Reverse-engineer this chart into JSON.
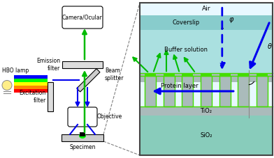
{
  "fig_width": 3.92,
  "fig_height": 2.27,
  "dpi": 100,
  "colors": {
    "blue": "#0000ee",
    "green": "#00bb00",
    "lime": "#44ee00",
    "gray": "#aaaaaa",
    "darkgray": "#555555",
    "panel_border": "#444444",
    "air_bg": "#e8f8ff",
    "coverslip_bg": "#99ddcc",
    "buffer_bg": "#aae8e0",
    "sio2_bg": "#99ddcc",
    "tio2_gray": "#aabbbb",
    "grating_green": "#44dd00",
    "white": "#ffffff",
    "lightgray": "#dddddd",
    "beam_red": "#ff0000",
    "beam_orange": "#ff8800",
    "beam_yellow": "#ffff00",
    "beam_green": "#00ff00",
    "beam_blue": "#0000ff",
    "bulb_yellow": "#ffee88",
    "specimen_green": "#00ff00"
  },
  "labels": {
    "camera": "Camera/Ocular",
    "emission": "Emission\nfilter",
    "hbo": "HBO lamp",
    "beam_splitter": "Beam\nsplitter",
    "excitation": "Excitation\nfilter",
    "objective": "Objective",
    "specimen": "Specimen",
    "air": "Air",
    "coverslip": "Coverslip",
    "buffer": "Buffer solution",
    "protein": "Protein layer",
    "tio2": "TiO₂",
    "sio2": "SiO₂",
    "phi": "φ",
    "theta": "θ"
  }
}
